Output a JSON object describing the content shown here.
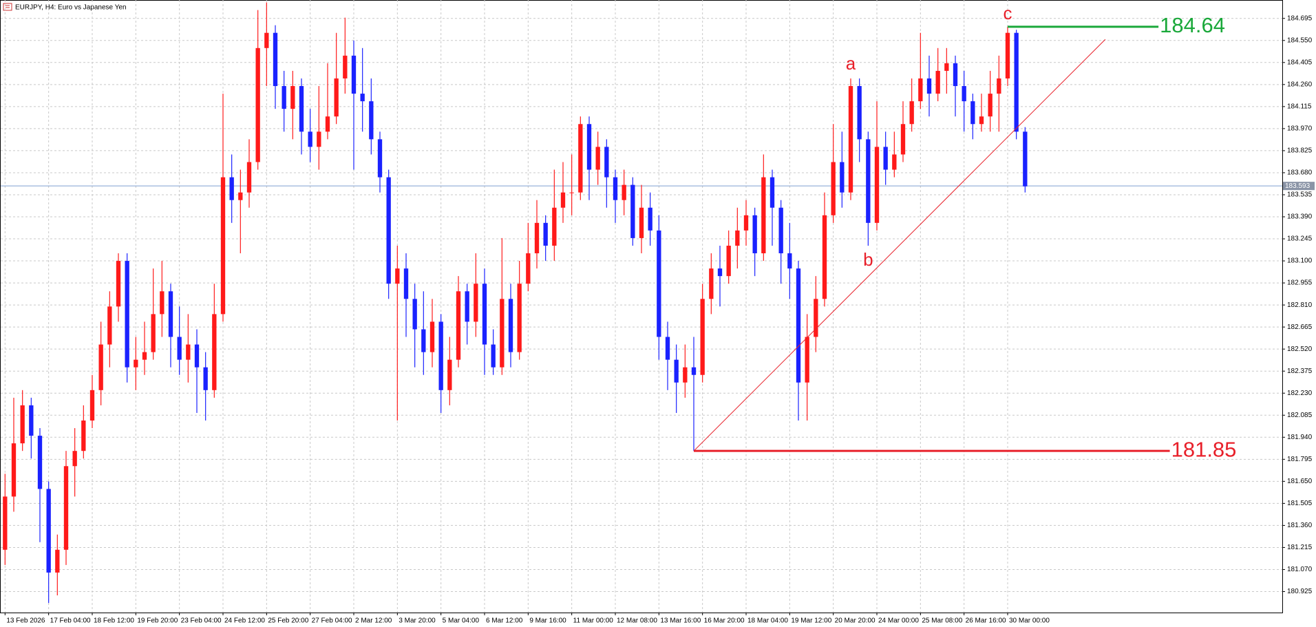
{
  "chart_data": {
    "type": "candlestick",
    "title": "EURJPY, H4:  Euro vs Japanese Yen",
    "up_color": "#ff1a1a",
    "down_color": "#1a22ff",
    "grid": true,
    "xlim": [
      -0.5,
      146.5
    ],
    "ylim": [
      180.787,
      184.816
    ],
    "yticks": [
      180.925,
      {
        "value": 181.07,
        "label": "181.070"
      },
      181.215,
      {
        "value": 181.36,
        "label": "181.360"
      },
      181.505,
      {
        "value": 181.65,
        "label": "181.650"
      },
      181.795,
      {
        "value": 181.94,
        "label": "181.940"
      },
      182.085,
      {
        "value": 182.23,
        "label": "182.230"
      },
      182.375,
      {
        "value": 182.52,
        "label": "182.520"
      },
      182.665,
      {
        "value": 182.81,
        "label": "182.810"
      },
      182.955,
      {
        "value": 183.1,
        "label": "183.100"
      },
      183.245,
      {
        "value": 183.39,
        "label": "183.390"
      },
      183.535,
      {
        "value": 183.68,
        "label": "183.680"
      },
      183.825,
      {
        "value": 183.97,
        "label": "183.970"
      },
      184.115,
      {
        "value": 184.26,
        "label": "184.260"
      },
      184.405,
      {
        "value": 184.55,
        "label": "184.550"
      },
      184.695
    ],
    "xticks": [
      {
        "value": 0,
        "label": "13 Feb 2026"
      },
      {
        "value": 5,
        "label": "17 Feb 04:00"
      },
      {
        "value": 10,
        "label": "18 Feb 12:00"
      },
      {
        "value": 15,
        "label": "19 Feb 20:00"
      },
      {
        "value": 20,
        "label": "23 Feb 04:00"
      },
      {
        "value": 25,
        "label": "24 Feb 12:00"
      },
      {
        "value": 30,
        "label": "25 Feb 20:00"
      },
      {
        "value": 35,
        "label": "27 Feb 04:00"
      },
      {
        "value": 40,
        "label": "2 Mar 12:00"
      },
      {
        "value": 45,
        "label": "3 Mar 20:00"
      },
      {
        "value": 50,
        "label": "5 Mar 04:00"
      },
      {
        "value": 55,
        "label": "6 Mar 12:00"
      },
      {
        "value": 60,
        "label": "9 Mar 16:00"
      },
      {
        "value": 65,
        "label": "11 Mar 00:00"
      },
      {
        "value": 70,
        "label": "12 Mar 08:00"
      },
      {
        "value": 75,
        "label": "13 Mar 16:00"
      },
      {
        "value": 80,
        "label": "16 Mar 20:00"
      },
      {
        "value": 85,
        "label": "18 Mar 04:00"
      },
      {
        "value": 90,
        "label": "19 Mar 12:00"
      },
      {
        "value": 95,
        "label": "20 Mar 20:00"
      },
      {
        "value": 100,
        "label": "24 Mar 00:00"
      },
      {
        "value": 105,
        "label": "25 Mar 08:00"
      },
      {
        "value": 110,
        "label": "26 Mar 16:00"
      },
      {
        "value": 115,
        "label": "30 Mar 00:00"
      }
    ],
    "open": [
      181.2,
      181.55,
      181.9,
      182.15,
      181.95,
      181.6,
      181.05,
      181.2,
      181.75,
      181.85,
      182.05,
      182.25,
      182.55,
      182.8,
      183.1,
      182.4,
      182.45,
      182.5,
      182.75,
      182.9,
      182.6,
      182.45,
      182.55,
      182.4,
      182.25,
      182.75,
      183.65,
      183.5,
      183.55,
      183.75,
      184.5,
      184.6,
      184.25,
      184.1,
      184.25,
      183.95,
      183.85,
      183.95,
      184.05,
      184.3,
      184.45,
      184.2,
      184.15,
      183.9,
      183.65,
      182.95,
      183.05,
      182.85,
      182.65,
      182.5,
      182.7,
      182.25,
      182.45,
      182.9,
      182.7,
      182.95,
      182.55,
      182.4,
      182.85,
      182.5,
      182.95,
      183.15,
      183.35,
      183.2,
      183.45,
      183.55,
      183.55,
      184.0,
      183.7,
      183.85,
      183.65,
      183.5,
      183.6,
      183.25,
      183.45,
      183.3,
      182.6,
      182.45,
      182.3,
      182.4,
      182.35,
      182.85,
      183.05,
      183.0,
      183.2,
      183.3,
      183.4,
      183.15,
      183.65,
      183.45,
      183.15,
      183.05,
      182.3,
      182.6,
      182.85,
      183.4,
      183.75,
      183.55,
      184.25,
      183.9,
      183.35,
      183.85,
      183.7,
      183.8,
      184.0,
      184.15,
      184.3,
      184.2,
      184.35,
      184.4,
      184.25,
      184.15,
      184.0,
      184.05,
      184.2,
      184.3,
      184.6,
      183.95
    ],
    "high": [
      181.7,
      182.2,
      182.25,
      182.2,
      182.0,
      181.65,
      181.3,
      181.85,
      182.0,
      182.15,
      182.35,
      182.7,
      182.9,
      183.15,
      183.15,
      182.6,
      182.7,
      183.05,
      183.1,
      182.95,
      182.8,
      182.75,
      182.65,
      182.5,
      182.95,
      184.2,
      183.8,
      183.7,
      183.9,
      184.75,
      184.8,
      184.65,
      184.35,
      184.35,
      184.3,
      184.1,
      184.25,
      184.4,
      184.6,
      184.7,
      184.55,
      184.5,
      184.3,
      183.95,
      183.7,
      183.2,
      183.15,
      182.95,
      182.9,
      182.85,
      182.75,
      182.6,
      183.0,
      182.95,
      183.15,
      183.05,
      182.65,
      183.25,
      182.95,
      183.1,
      183.35,
      183.5,
      183.4,
      183.7,
      183.75,
      183.8,
      184.05,
      184.05,
      183.95,
      183.9,
      183.7,
      183.7,
      183.65,
      183.6,
      183.55,
      183.4,
      182.7,
      182.55,
      182.55,
      182.6,
      182.95,
      183.15,
      183.2,
      183.3,
      183.45,
      183.5,
      183.45,
      183.8,
      183.7,
      183.5,
      183.35,
      183.1,
      182.75,
      183.0,
      183.55,
      184.0,
      183.95,
      184.3,
      184.3,
      183.95,
      184.15,
      183.95,
      183.95,
      184.15,
      184.3,
      184.6,
      184.45,
      184.5,
      184.5,
      184.45,
      184.35,
      184.2,
      184.2,
      184.35,
      184.45,
      184.64,
      184.62,
      183.98
    ],
    "low": [
      181.1,
      181.45,
      181.85,
      181.8,
      181.25,
      180.85,
      180.9,
      181.1,
      181.55,
      181.8,
      182.0,
      182.15,
      182.4,
      182.7,
      182.3,
      182.25,
      182.35,
      182.45,
      182.6,
      182.4,
      182.35,
      182.3,
      182.1,
      182.05,
      182.2,
      182.7,
      183.35,
      183.15,
      183.45,
      183.7,
      184.25,
      184.1,
      183.95,
      183.9,
      183.8,
      183.75,
      183.7,
      183.9,
      184.0,
      184.2,
      183.7,
      183.95,
      183.8,
      183.55,
      182.85,
      182.05,
      182.6,
      182.4,
      182.35,
      182.4,
      182.1,
      182.15,
      182.4,
      182.55,
      182.6,
      182.35,
      182.35,
      182.35,
      182.4,
      182.45,
      182.9,
      183.05,
      183.1,
      183.1,
      183.35,
      183.4,
      183.5,
      183.5,
      183.6,
      183.45,
      183.35,
      183.4,
      183.2,
      183.15,
      183.2,
      182.45,
      182.25,
      182.1,
      182.2,
      181.85,
      182.3,
      182.75,
      182.8,
      182.95,
      183.05,
      183.2,
      183.0,
      183.1,
      183.2,
      182.95,
      182.85,
      182.05,
      182.05,
      182.5,
      182.8,
      183.35,
      183.45,
      183.5,
      183.75,
      183.2,
      183.3,
      183.6,
      183.65,
      183.75,
      183.95,
      184.1,
      184.05,
      184.15,
      184.2,
      184.05,
      183.95,
      183.9,
      183.95,
      183.95,
      183.95,
      184.25,
      183.9,
      183.55
    ],
    "close": [
      181.55,
      181.9,
      182.15,
      181.95,
      181.6,
      181.05,
      181.2,
      181.75,
      181.85,
      182.05,
      182.25,
      182.55,
      182.8,
      183.1,
      182.4,
      182.45,
      182.5,
      182.75,
      182.9,
      182.6,
      182.45,
      182.55,
      182.4,
      182.25,
      182.75,
      183.65,
      183.5,
      183.55,
      183.75,
      184.5,
      184.6,
      184.25,
      184.1,
      184.25,
      183.95,
      183.85,
      183.95,
      184.05,
      184.3,
      184.45,
      184.2,
      184.15,
      183.9,
      183.65,
      182.95,
      183.05,
      182.85,
      182.65,
      182.5,
      182.7,
      182.25,
      182.45,
      182.9,
      182.7,
      182.95,
      182.55,
      182.4,
      182.85,
      182.5,
      182.95,
      183.15,
      183.35,
      183.2,
      183.45,
      183.55,
      183.55,
      184.0,
      183.7,
      183.85,
      183.65,
      183.5,
      183.6,
      183.25,
      183.45,
      183.3,
      182.6,
      182.45,
      182.3,
      182.4,
      182.35,
      182.85,
      183.05,
      183.0,
      183.2,
      183.3,
      183.4,
      183.15,
      183.65,
      183.45,
      183.15,
      183.05,
      182.3,
      182.6,
      182.85,
      183.4,
      183.75,
      183.55,
      184.25,
      183.9,
      183.35,
      183.85,
      183.7,
      183.8,
      184.0,
      184.15,
      184.3,
      184.2,
      184.35,
      184.4,
      184.25,
      184.15,
      184.0,
      184.05,
      184.2,
      184.3,
      184.6,
      183.95,
      183.59
    ],
    "current_price": 183.593,
    "current_color": "#7f9fd0",
    "levels": [
      {
        "value": 184.64,
        "x": [
          115,
          132.3
        ],
        "color": "#1aa83a"
      },
      {
        "value": 181.85,
        "x": [
          79,
          133.6
        ],
        "color": "#e8202a"
      }
    ],
    "trendline": {
      "x": [
        79,
        126.2
      ],
      "y": [
        181.85,
        184.557
      ],
      "color": "#e8202a"
    },
    "annotations": [
      {
        "text": "a",
        "x": 97,
        "y": 184.39
      },
      {
        "text": "b",
        "x": 99,
        "y": 183.1
      },
      {
        "text": "c",
        "x": 115,
        "y": 184.72
      }
    ],
    "annotation_color": "#e8202a"
  }
}
